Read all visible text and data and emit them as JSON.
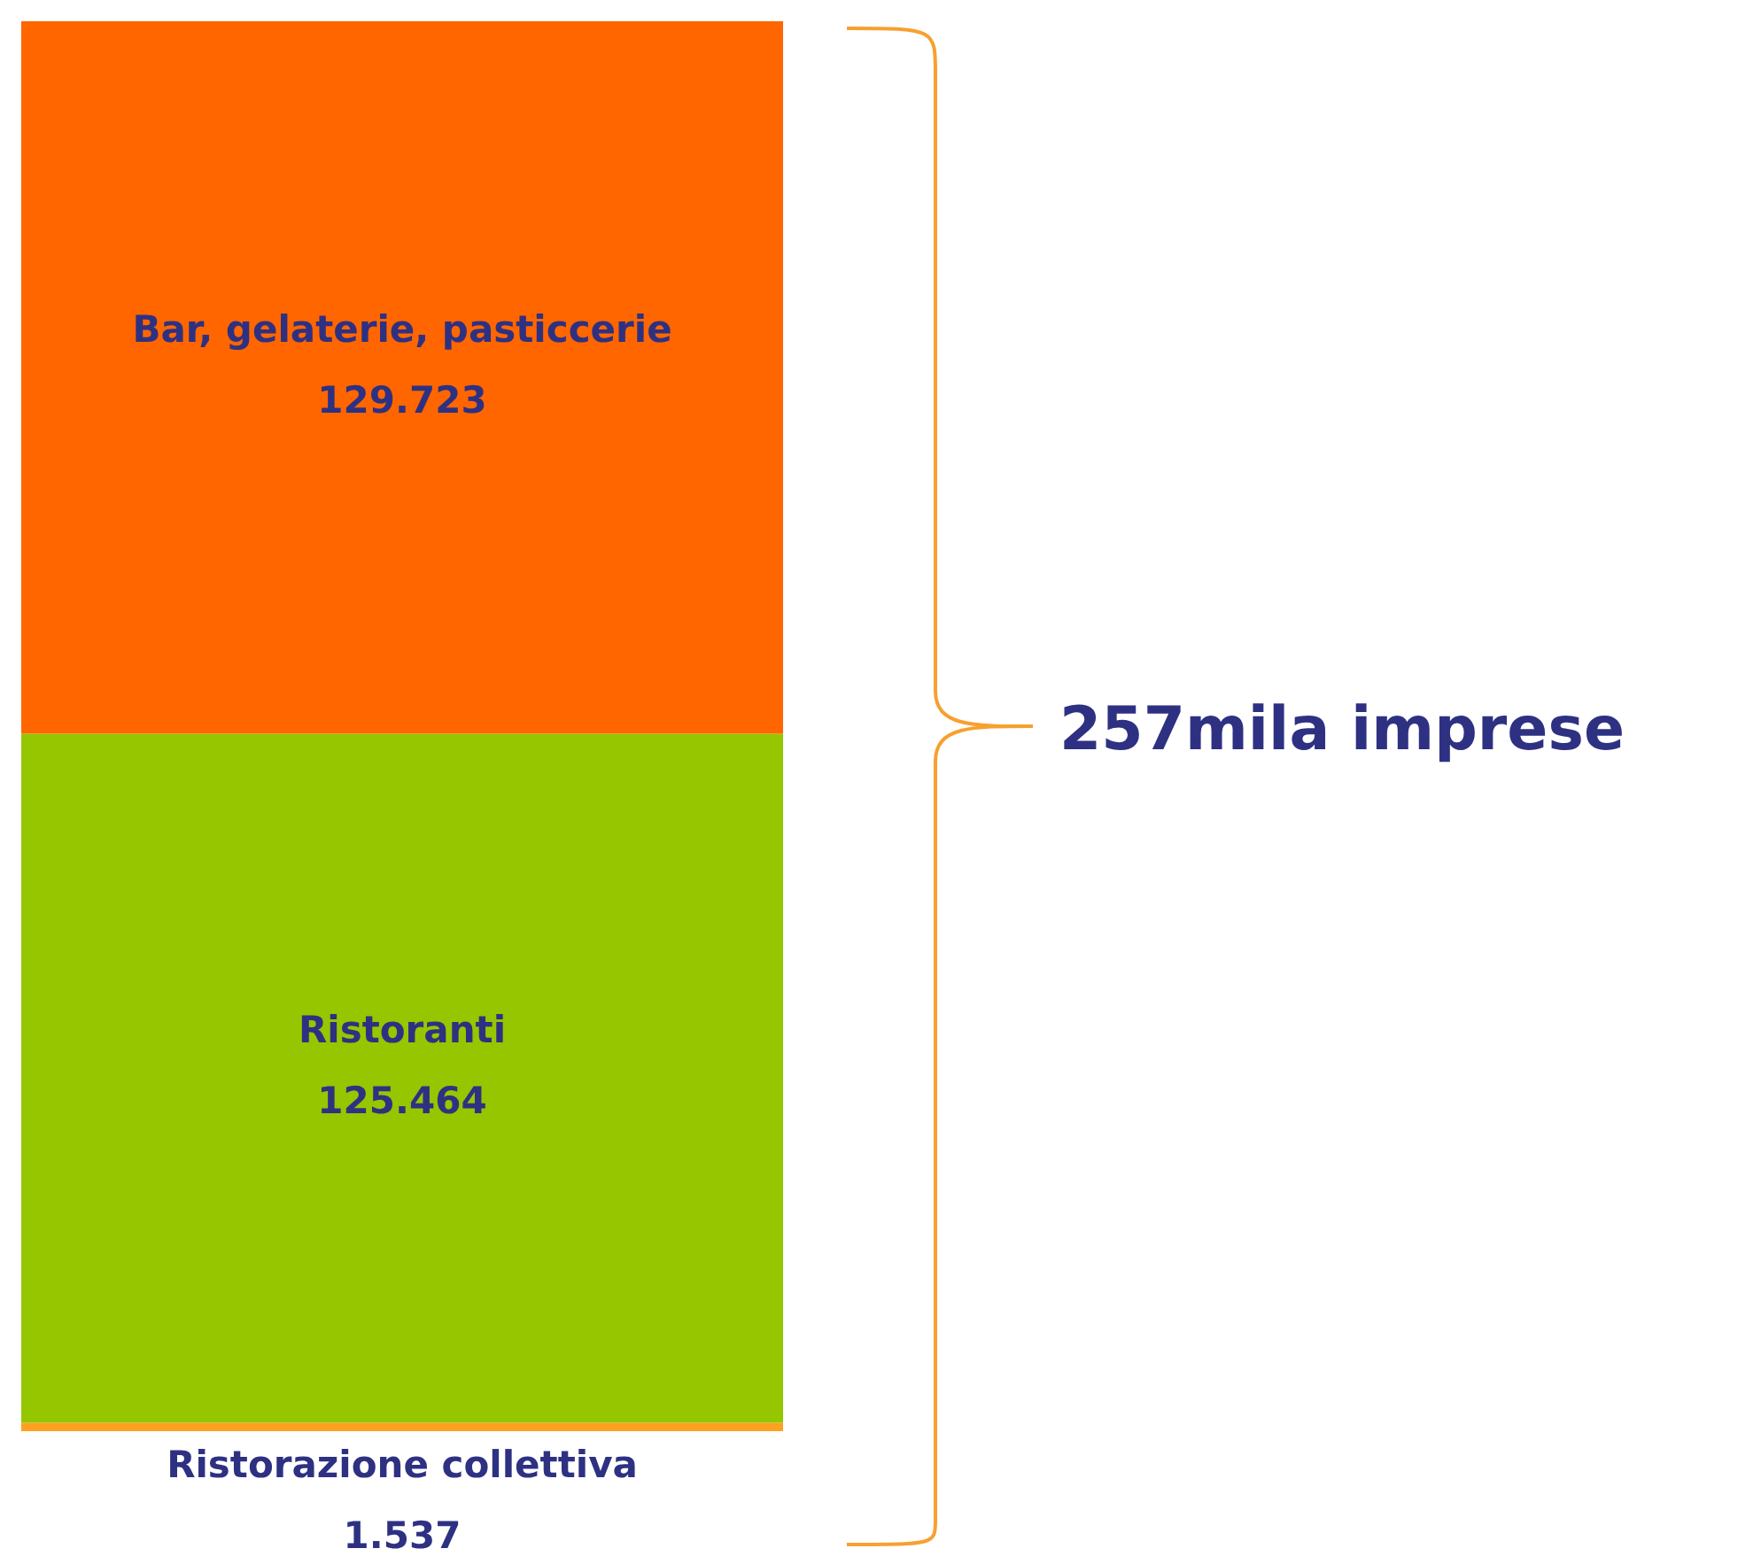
{
  "chart_data": {
    "type": "bar",
    "stacked": true,
    "categories": [
      null
    ],
    "series": [
      {
        "name": "Ristorazione collettiva",
        "color": "#ffa020",
        "values": [
          1537
        ],
        "value_labels": [
          "1.537"
        ]
      },
      {
        "name": "Ristoranti",
        "color": "#95c600",
        "values": [
          125464
        ],
        "value_labels": [
          "125.464"
        ]
      },
      {
        "name": "Bar, gelaterie, pasticcerie",
        "color": "#ff6600",
        "values": [
          129723
        ],
        "value_labels": [
          "129.723"
        ]
      }
    ],
    "annotations": [
      "257mila imprese"
    ]
  }
}
